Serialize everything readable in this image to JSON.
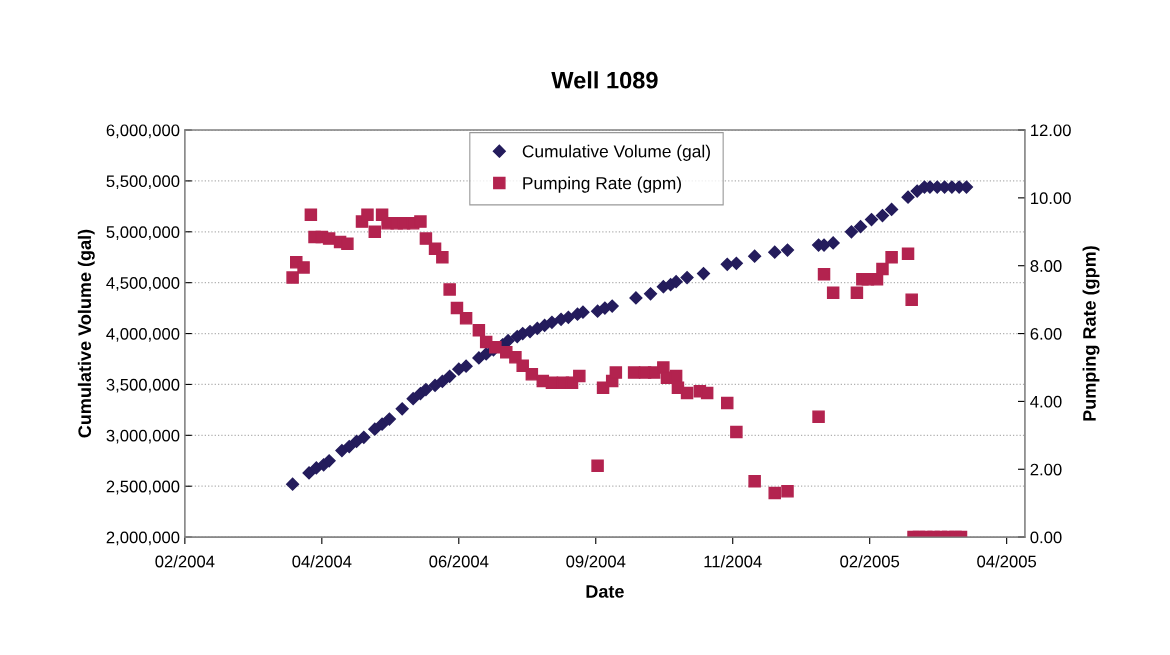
{
  "chart_data": {
    "type": "scatter",
    "title": "Well 1089",
    "xlabel": "Date",
    "ylabel": "Cumulative Volume (gal)",
    "y2label": "Pumping Rate (gpm)",
    "xlim": [
      "2004-02-01",
      "2005-05-06"
    ],
    "xticks": [
      {
        "value": "2004-02-01",
        "label": "02/2004"
      },
      {
        "value": "2004-04-16",
        "label": "04/2004"
      },
      {
        "value": "2004-06-30",
        "label": "06/2004"
      },
      {
        "value": "2004-09-13",
        "label": "09/2004"
      },
      {
        "value": "2004-11-27",
        "label": "11/2004"
      },
      {
        "value": "2005-02-10",
        "label": "02/2005"
      },
      {
        "value": "2005-04-26",
        "label": "04/2005"
      }
    ],
    "ylim": [
      2000000,
      6000000
    ],
    "yticks": [
      {
        "value": 2000000,
        "label": "2,000,000"
      },
      {
        "value": 2500000,
        "label": "2,500,000"
      },
      {
        "value": 3000000,
        "label": "3,000,000"
      },
      {
        "value": 3500000,
        "label": "3,500,000"
      },
      {
        "value": 4000000,
        "label": "4,000,000"
      },
      {
        "value": 4500000,
        "label": "4,500,000"
      },
      {
        "value": 5000000,
        "label": "5,000,000"
      },
      {
        "value": 5500000,
        "label": "5,500,000"
      },
      {
        "value": 6000000,
        "label": "6,000,000"
      }
    ],
    "y2lim": [
      0,
      12
    ],
    "y2ticks": [
      {
        "value": 0,
        "label": "0.00"
      },
      {
        "value": 2,
        "label": "2.00"
      },
      {
        "value": 4,
        "label": "4.00"
      },
      {
        "value": 6,
        "label": "6.00"
      },
      {
        "value": 8,
        "label": "8.00"
      },
      {
        "value": 10,
        "label": "10.00"
      },
      {
        "value": 12,
        "label": "12.00"
      }
    ],
    "grid": "y",
    "legend": "top",
    "series": [
      {
        "name": "Cumulative Volume (gal)",
        "color": "#241c5c",
        "marker": "diamond",
        "x": [
          "2004-03-31",
          "2004-04-09",
          "2004-04-13",
          "2004-04-17",
          "2004-04-20",
          "2004-04-27",
          "2004-05-01",
          "2004-05-05",
          "2004-05-09",
          "2004-05-15",
          "2004-05-19",
          "2004-05-23",
          "2004-05-30",
          "2004-06-05",
          "2004-06-09",
          "2004-06-12",
          "2004-06-17",
          "2004-06-21",
          "2004-06-25",
          "2004-06-30",
          "2004-07-04",
          "2004-07-11",
          "2004-07-15",
          "2004-07-19",
          "2004-07-24",
          "2004-07-27",
          "2004-08-01",
          "2004-08-04",
          "2004-08-08",
          "2004-08-12",
          "2004-08-16",
          "2004-08-20",
          "2004-08-25",
          "2004-08-29",
          "2004-09-03",
          "2004-09-06",
          "2004-09-14",
          "2004-09-18",
          "2004-09-22",
          "2004-10-05",
          "2004-10-13",
          "2004-10-20",
          "2004-10-24",
          "2004-10-27",
          "2004-11-02",
          "2004-11-11",
          "2004-11-24",
          "2004-11-29",
          "2004-12-09",
          "2004-12-20",
          "2004-12-27",
          "2005-01-13",
          "2005-01-16",
          "2005-01-21",
          "2005-01-31",
          "2005-02-05",
          "2005-02-11",
          "2005-02-17",
          "2005-02-22",
          "2005-03-03",
          "2005-03-08",
          "2005-03-12",
          "2005-03-15",
          "2005-03-19",
          "2005-03-23",
          "2005-03-27",
          "2005-03-31",
          "2005-04-04"
        ],
        "values": [
          2520000,
          2630000,
          2680000,
          2710000,
          2750000,
          2850000,
          2890000,
          2940000,
          2980000,
          3060000,
          3110000,
          3160000,
          3260000,
          3360000,
          3410000,
          3450000,
          3490000,
          3530000,
          3580000,
          3650000,
          3680000,
          3760000,
          3800000,
          3840000,
          3890000,
          3930000,
          3970000,
          4000000,
          4020000,
          4050000,
          4080000,
          4110000,
          4140000,
          4160000,
          4190000,
          4210000,
          4220000,
          4250000,
          4270000,
          4350000,
          4390000,
          4460000,
          4480000,
          4510000,
          4550000,
          4590000,
          4680000,
          4690000,
          4760000,
          4800000,
          4820000,
          4870000,
          4870000,
          4890000,
          5000000,
          5050000,
          5120000,
          5160000,
          5220000,
          5340000,
          5400000,
          5440000,
          5440000,
          5440000,
          5440000,
          5440000,
          5440000,
          5440000
        ]
      },
      {
        "name": "Pumping Rate (gpm)",
        "color": "#b3234f",
        "marker": "square",
        "axis": "y2",
        "x": [
          "2004-03-31",
          "2004-04-02",
          "2004-04-06",
          "2004-04-10",
          "2004-04-12",
          "2004-04-16",
          "2004-04-20",
          "2004-04-26",
          "2004-04-30",
          "2004-05-08",
          "2004-05-11",
          "2004-05-15",
          "2004-05-19",
          "2004-05-22",
          "2004-05-27",
          "2004-05-31",
          "2004-06-05",
          "2004-06-09",
          "2004-06-12",
          "2004-06-17",
          "2004-06-21",
          "2004-06-25",
          "2004-06-29",
          "2004-07-04",
          "2004-07-11",
          "2004-07-15",
          "2004-07-20",
          "2004-07-26",
          "2004-07-31",
          "2004-08-04",
          "2004-08-09",
          "2004-08-15",
          "2004-08-20",
          "2004-08-26",
          "2004-08-31",
          "2004-09-04",
          "2004-09-14",
          "2004-09-17",
          "2004-09-22",
          "2004-09-24",
          "2004-10-04",
          "2004-10-10",
          "2004-10-15",
          "2004-10-20",
          "2004-10-22",
          "2004-10-27",
          "2004-10-28",
          "2004-11-02",
          "2004-11-09",
          "2004-11-13",
          "2004-11-24",
          "2004-11-29",
          "2004-12-09",
          "2004-12-20",
          "2004-12-27",
          "2005-01-13",
          "2005-01-16",
          "2005-01-21",
          "2005-02-03",
          "2005-02-06",
          "2005-02-09",
          "2005-02-14",
          "2005-02-17",
          "2005-02-22",
          "2005-03-03",
          "2005-03-05",
          "2005-03-06",
          "2005-03-09",
          "2005-03-13",
          "2005-03-17",
          "2005-03-21",
          "2005-03-25",
          "2005-03-29",
          "2005-04-01"
        ],
        "values": [
          7.65,
          8.1,
          7.95,
          9.5,
          8.85,
          8.85,
          8.8,
          8.7,
          8.65,
          9.3,
          9.5,
          9.0,
          9.5,
          9.25,
          9.25,
          9.25,
          9.25,
          9.3,
          8.8,
          8.5,
          8.25,
          7.3,
          6.75,
          6.45,
          6.1,
          5.75,
          5.6,
          5.45,
          5.3,
          5.05,
          4.8,
          4.6,
          4.55,
          4.55,
          4.55,
          4.75,
          2.1,
          4.4,
          4.6,
          4.85,
          4.85,
          4.85,
          4.85,
          5.0,
          4.7,
          4.75,
          4.4,
          4.25,
          4.3,
          4.25,
          3.95,
          3.1,
          1.65,
          1.3,
          1.35,
          3.55,
          7.75,
          7.2,
          7.2,
          7.6,
          7.6,
          7.6,
          7.9,
          8.25,
          8.35,
          7.0,
          0,
          0,
          0,
          0,
          0,
          0,
          0,
          0
        ]
      }
    ]
  }
}
